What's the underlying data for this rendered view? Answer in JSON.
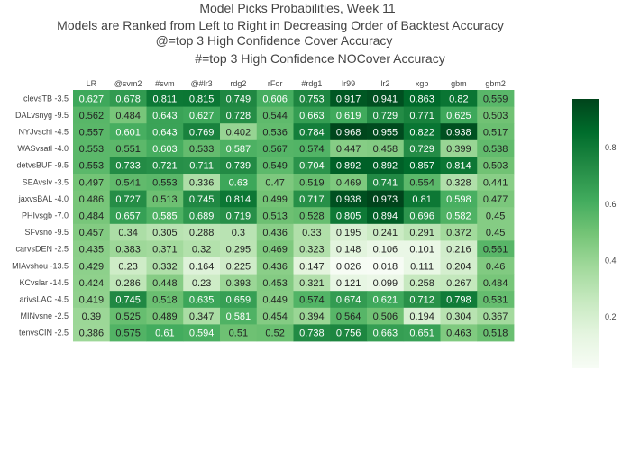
{
  "chart_data": {
    "type": "heatmap",
    "title_lines": [
      "Model Picks Probabilities, Week 11",
      "Models are Ranked from Left to Right in Decreasing Order of Backtest Accuracy",
      "@=top 3 High Confidence Cover Accuracy",
      "#=top 3 High Confidence NOCover Accuracy"
    ],
    "columns": [
      "LR",
      "@svm2",
      "#svm",
      "@#lr3",
      "rdg2",
      "rFor",
      "#rdg1",
      "lr99",
      "lr2",
      "xgb",
      "gbm",
      "gbm2"
    ],
    "rows": [
      "clevsTB -3.5",
      "DALvsnyg -9.5",
      "NYJvschi -4.5",
      "WASvsatl -4.0",
      "detvsBUF -9.5",
      "SEAvslv -3.5",
      "jaxvsBAL -4.0",
      "PHIvsgb -7.0",
      "SFvsno -9.5",
      "carvsDEN -2.5",
      "MIAvshou -13.5",
      "KCvslar -14.5",
      "arivsLAC -4.5",
      "MINvsne -2.5",
      "tenvsCIN -2.5"
    ],
    "values": [
      [
        "0.627",
        "0.678",
        "0.811",
        "0.815",
        "0.749",
        "0.606",
        "0.753",
        "0.917",
        "0.941",
        "0.863",
        "0.82",
        "0.559"
      ],
      [
        "0.562",
        "0.484",
        "0.643",
        "0.627",
        "0.728",
        "0.544",
        "0.663",
        "0.619",
        "0.729",
        "0.771",
        "0.625",
        "0.503"
      ],
      [
        "0.557",
        "0.601",
        "0.643",
        "0.769",
        "0.402",
        "0.536",
        "0.784",
        "0.968",
        "0.955",
        "0.822",
        "0.938",
        "0.517"
      ],
      [
        "0.553",
        "0.551",
        "0.603",
        "0.533",
        "0.587",
        "0.567",
        "0.574",
        "0.447",
        "0.458",
        "0.729",
        "0.399",
        "0.538"
      ],
      [
        "0.553",
        "0.733",
        "0.721",
        "0.711",
        "0.739",
        "0.549",
        "0.704",
        "0.892",
        "0.892",
        "0.857",
        "0.814",
        "0.503"
      ],
      [
        "0.497",
        "0.541",
        "0.553",
        "0.336",
        "0.63",
        "0.47",
        "0.519",
        "0.469",
        "0.741",
        "0.554",
        "0.328",
        "0.441"
      ],
      [
        "0.486",
        "0.727",
        "0.513",
        "0.745",
        "0.814",
        "0.499",
        "0.717",
        "0.938",
        "0.973",
        "0.81",
        "0.598",
        "0.477"
      ],
      [
        "0.484",
        "0.657",
        "0.585",
        "0.689",
        "0.719",
        "0.513",
        "0.528",
        "0.805",
        "0.894",
        "0.696",
        "0.582",
        "0.45"
      ],
      [
        "0.457",
        "0.34",
        "0.305",
        "0.288",
        "0.3",
        "0.436",
        "0.33",
        "0.195",
        "0.241",
        "0.291",
        "0.372",
        "0.45"
      ],
      [
        "0.435",
        "0.383",
        "0.371",
        "0.32",
        "0.295",
        "0.469",
        "0.323",
        "0.148",
        "0.106",
        "0.101",
        "0.216",
        "0.561"
      ],
      [
        "0.429",
        "0.23",
        "0.332",
        "0.164",
        "0.225",
        "0.436",
        "0.147",
        "0.026",
        "0.018",
        "0.111",
        "0.204",
        "0.46"
      ],
      [
        "0.424",
        "0.286",
        "0.448",
        "0.23",
        "0.393",
        "0.453",
        "0.321",
        "0.121",
        "0.099",
        "0.258",
        "0.267",
        "0.484"
      ],
      [
        "0.419",
        "0.745",
        "0.518",
        "0.635",
        "0.659",
        "0.449",
        "0.574",
        "0.674",
        "0.621",
        "0.712",
        "0.798",
        "0.531"
      ],
      [
        "0.39",
        "0.525",
        "0.489",
        "0.347",
        "0.581",
        "0.454",
        "0.394",
        "0.564",
        "0.506",
        "0.194",
        "0.304",
        "0.367"
      ],
      [
        "0.386",
        "0.575",
        "0.61",
        "0.594",
        "0.51",
        "0.52",
        "0.738",
        "0.756",
        "0.663",
        "0.651",
        "0.463",
        "0.518"
      ]
    ],
    "zlim": [
      0.018,
      0.973
    ],
    "colorscale": "Greens",
    "colorbar": {
      "ticks": [
        "0.2",
        "0.4",
        "0.6",
        "0.8"
      ],
      "placement": "right"
    }
  }
}
